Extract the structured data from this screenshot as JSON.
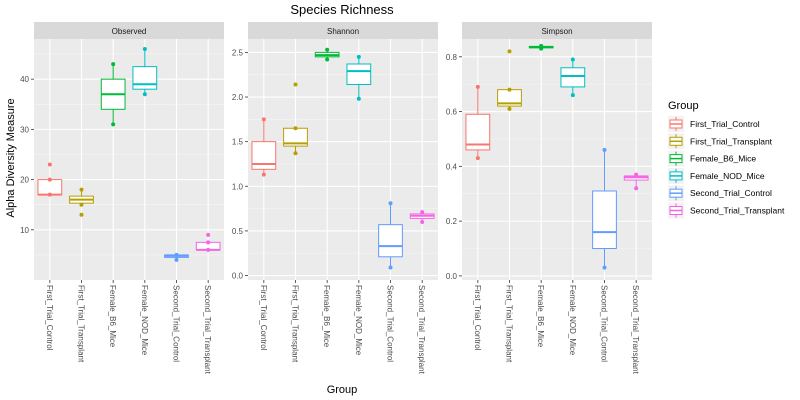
{
  "chart_data": {
    "type": "boxplot",
    "title": "Species Richness",
    "xlabel": "Group",
    "ylabel": "Alpha Diversity Measure",
    "grid": true,
    "legend": {
      "title": "Group",
      "placement": "right"
    },
    "groups": [
      {
        "name": "First_Trial_Control",
        "color": "#F8766D"
      },
      {
        "name": "First_Trial_Transplant",
        "color": "#B79F00"
      },
      {
        "name": "Female_B6_Mice",
        "color": "#00BA38"
      },
      {
        "name": "Female_NOD_Mice",
        "color": "#00BFC4"
      },
      {
        "name": "Second_Trial_Control",
        "color": "#619CFF"
      },
      {
        "name": "Second_Trial_Transplant",
        "color": "#F564E3"
      }
    ],
    "panels": [
      {
        "name": "Observed",
        "ylim": [
          0,
          48
        ],
        "yticks": [
          10,
          20,
          30,
          40
        ],
        "tick_labels": [
          "10",
          "20",
          "30",
          "40"
        ],
        "boxes": [
          {
            "group": "First_Trial_Control",
            "min": 17,
            "q1": 17,
            "median": 17,
            "q3": 20,
            "max": 20,
            "outliers": [
              23
            ]
          },
          {
            "group": "First_Trial_Transplant",
            "min": 15,
            "q1": 15.3,
            "median": 16,
            "q3": 16.7,
            "max": 18,
            "outliers": [
              13
            ]
          },
          {
            "group": "Female_B6_Mice",
            "min": 31,
            "q1": 34,
            "median": 37,
            "q3": 40,
            "max": 43,
            "outliers": []
          },
          {
            "group": "Female_NOD_Mice",
            "min": 37,
            "q1": 38,
            "median": 39,
            "q3": 42.5,
            "max": 46,
            "outliers": []
          },
          {
            "group": "Second_Trial_Control",
            "min": 4,
            "q1": 4.5,
            "median": 4.8,
            "q3": 5,
            "max": 5,
            "outliers": []
          },
          {
            "group": "Second_Trial_Transplant",
            "min": 6,
            "q1": 6,
            "median": 6,
            "q3": 7.5,
            "max": 7.5,
            "outliers": [
              9
            ]
          }
        ]
      },
      {
        "name": "Shannon",
        "ylim": [
          -0.05,
          2.65
        ],
        "yticks": [
          0.0,
          0.5,
          1.0,
          1.5,
          2.0,
          2.5
        ],
        "tick_labels": [
          "0.0",
          "0.5",
          "1.0",
          "1.5",
          "2.0",
          "2.5"
        ],
        "boxes": [
          {
            "group": "First_Trial_Control",
            "min": 1.13,
            "q1": 1.19,
            "median": 1.25,
            "q3": 1.5,
            "max": 1.75,
            "outliers": []
          },
          {
            "group": "First_Trial_Transplant",
            "min": 1.37,
            "q1": 1.45,
            "median": 1.48,
            "q3": 1.65,
            "max": 1.65,
            "outliers": [
              2.14
            ]
          },
          {
            "group": "Female_B6_Mice",
            "min": 2.42,
            "q1": 2.45,
            "median": 2.47,
            "q3": 2.5,
            "max": 2.53,
            "outliers": []
          },
          {
            "group": "Female_NOD_Mice",
            "min": 1.98,
            "q1": 2.14,
            "median": 2.29,
            "q3": 2.37,
            "max": 2.45,
            "outliers": []
          },
          {
            "group": "Second_Trial_Control",
            "min": 0.09,
            "q1": 0.21,
            "median": 0.33,
            "q3": 0.57,
            "max": 0.81,
            "outliers": []
          },
          {
            "group": "Second_Trial_Transplant",
            "min": 0.6,
            "q1": 0.64,
            "median": 0.67,
            "q3": 0.69,
            "max": 0.71,
            "outliers": []
          }
        ]
      },
      {
        "name": "Simpson",
        "ylim": [
          -0.015,
          0.865
        ],
        "yticks": [
          0.0,
          0.2,
          0.4,
          0.6,
          0.8
        ],
        "tick_labels": [
          "0.0",
          "0.2",
          "0.4",
          "0.6",
          "0.8"
        ],
        "boxes": [
          {
            "group": "First_Trial_Control",
            "min": 0.43,
            "q1": 0.46,
            "median": 0.48,
            "q3": 0.59,
            "max": 0.69,
            "outliers": []
          },
          {
            "group": "First_Trial_Transplant",
            "min": 0.61,
            "q1": 0.62,
            "median": 0.63,
            "q3": 0.68,
            "max": 0.68,
            "outliers": [
              0.82
            ]
          },
          {
            "group": "Female_B6_Mice",
            "min": 0.83,
            "q1": 0.833,
            "median": 0.835,
            "q3": 0.838,
            "max": 0.84,
            "outliers": []
          },
          {
            "group": "Female_NOD_Mice",
            "min": 0.66,
            "q1": 0.69,
            "median": 0.73,
            "q3": 0.76,
            "max": 0.79,
            "outliers": []
          },
          {
            "group": "Second_Trial_Control",
            "min": 0.03,
            "q1": 0.1,
            "median": 0.16,
            "q3": 0.31,
            "max": 0.46,
            "outliers": []
          },
          {
            "group": "Second_Trial_Transplant",
            "min": 0.32,
            "q1": 0.35,
            "median": 0.36,
            "q3": 0.365,
            "max": 0.37,
            "outliers": []
          }
        ]
      }
    ]
  }
}
